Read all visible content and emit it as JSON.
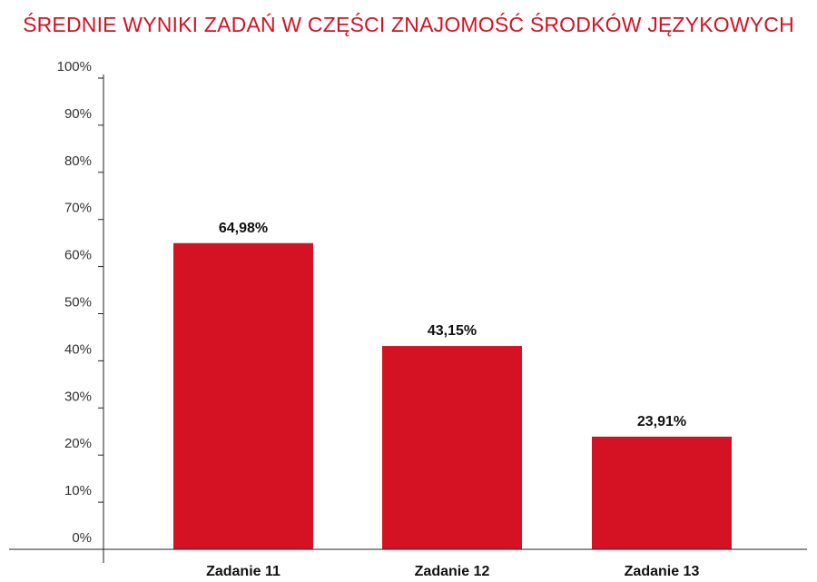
{
  "colors": {
    "title": "#d41224",
    "bar": "#d41224",
    "axis": "#222222"
  },
  "chart_data": {
    "type": "bar",
    "title": "ŚREDNIE WYNIKI ZADAŃ W CZĘŚCI ZNAJOMOŚĆ ŚRODKÓW JĘZYKOWYCH",
    "categories": [
      "Zadanie 11",
      "Zadanie 12",
      "Zadanie 13"
    ],
    "values": [
      64.98,
      43.15,
      23.91
    ],
    "data_labels": [
      "64,98%",
      "43,15%",
      "23,91%"
    ],
    "yticks": [
      "0%",
      "10%",
      "20%",
      "30%",
      "40%",
      "50%",
      "60%",
      "70%",
      "80%",
      "90%",
      "100%"
    ],
    "ylim": [
      0,
      100
    ],
    "grid": false,
    "legend": "none"
  }
}
